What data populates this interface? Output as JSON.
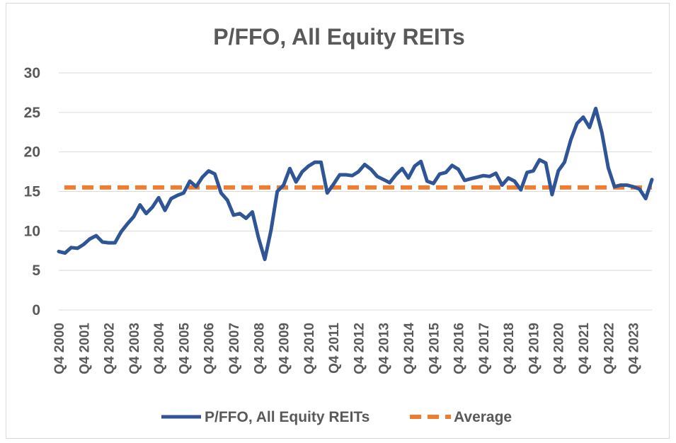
{
  "chart_data": {
    "type": "line",
    "title": "P/FFO, All Equity REITs",
    "xlabel": "",
    "ylabel": "",
    "ylim": [
      0,
      30
    ],
    "yticks": [
      0,
      5,
      10,
      15,
      20,
      25,
      30
    ],
    "grid": true,
    "legend_position": "bottom",
    "x_ticks": [
      "Q4 2000",
      "Q4 2001",
      "Q4 2002",
      "Q4 2003",
      "Q4 2004",
      "Q4 2005",
      "Q4 2006",
      "Q4 2007",
      "Q4 2008",
      "Q4 2009",
      "Q4 2010",
      "Q4 2011",
      "Q4 2012",
      "Q4 2013",
      "Q4 2014",
      "Q4 2015",
      "Q4 2016",
      "Q4 2017",
      "Q4 2018",
      "Q4 2019",
      "Q4 2020",
      "Q4 2021",
      "Q4 2022",
      "Q4 2023"
    ],
    "series": [
      {
        "name": "P/FFO, All Equity REITs",
        "color": "#2f5597",
        "style": "solid",
        "values": [
          7.4,
          7.2,
          7.9,
          7.8,
          8.3,
          9.0,
          9.4,
          8.6,
          8.5,
          8.5,
          9.9,
          10.9,
          11.8,
          13.3,
          12.2,
          13.0,
          14.2,
          12.6,
          14.1,
          14.5,
          14.8,
          16.3,
          15.6,
          16.8,
          17.6,
          17.2,
          14.8,
          13.9,
          12.0,
          12.2,
          11.6,
          12.4,
          9.1,
          6.4,
          10.1,
          15.0,
          15.8,
          17.9,
          16.2,
          17.5,
          18.2,
          18.7,
          18.7,
          14.8,
          15.9,
          17.1,
          17.1,
          17.0,
          17.5,
          18.4,
          17.8,
          16.9,
          16.5,
          16.1,
          17.1,
          17.9,
          16.7,
          18.2,
          18.8,
          16.3,
          16.0,
          17.2,
          17.4,
          18.3,
          17.8,
          16.4,
          16.6,
          16.8,
          17.0,
          16.9,
          17.3,
          15.8,
          16.7,
          16.3,
          15.2,
          17.4,
          17.6,
          19.0,
          18.6,
          14.6,
          17.6,
          18.7,
          21.5,
          23.6,
          24.4,
          23.1,
          25.5,
          22.4,
          18.0,
          15.6,
          15.8,
          15.8,
          15.6,
          15.3,
          14.1,
          16.5
        ]
      },
      {
        "name": "Average",
        "color": "#ed7d31",
        "style": "dashed",
        "values": [
          15.5,
          15.5
        ]
      }
    ]
  }
}
